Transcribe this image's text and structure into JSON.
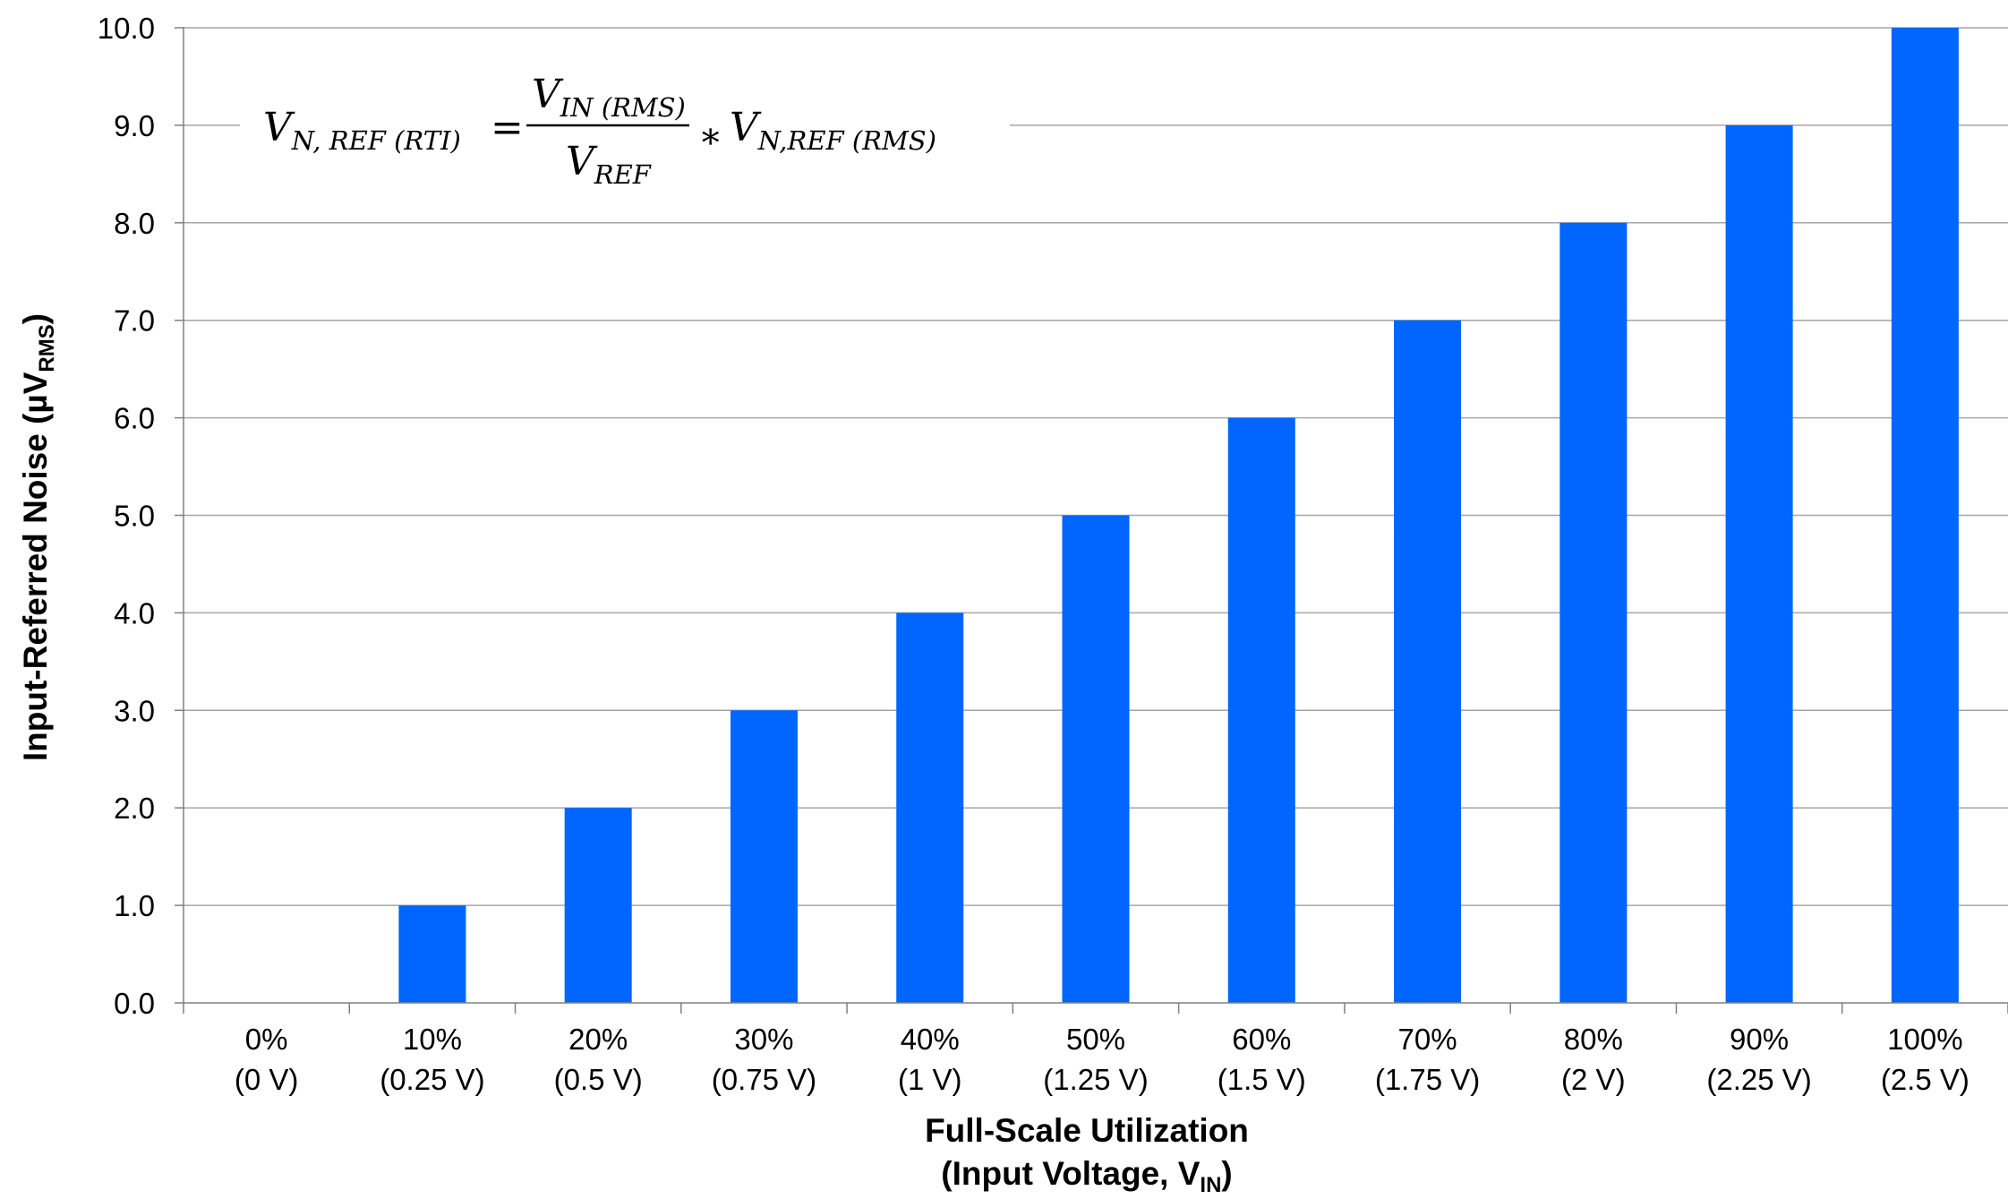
{
  "chart_data": {
    "type": "bar",
    "categories": [
      [
        "0%",
        "(0 V)"
      ],
      [
        "10%",
        "(0.25 V)"
      ],
      [
        "20%",
        "(0.5 V)"
      ],
      [
        "30%",
        "(0.75 V)"
      ],
      [
        "40%",
        "(1 V)"
      ],
      [
        "50%",
        "(1.25 V)"
      ],
      [
        "60%",
        "(1.5 V)"
      ],
      [
        "70%",
        "(1.75 V)"
      ],
      [
        "80%",
        "(2 V)"
      ],
      [
        "90%",
        "(2.25 V)"
      ],
      [
        "100%",
        "(2.5 V)"
      ]
    ],
    "values": [
      0,
      1,
      2,
      3,
      4,
      5,
      6,
      7,
      8,
      9,
      10
    ],
    "ylim": [
      0,
      10
    ],
    "yticks": [
      "0.0",
      "1.0",
      "2.0",
      "3.0",
      "4.0",
      "5.0",
      "6.0",
      "7.0",
      "8.0",
      "9.0",
      "10.0"
    ],
    "grid": true,
    "bar_color": "#0066ff",
    "xlabel": {
      "line1": "Full-Scale Utilization",
      "line2_main": "(Input Voltage, V",
      "line2_sub": "IN",
      "line2_end": ")"
    },
    "ylabel": {
      "main": "Input-Referred Noise (µV",
      "sub": "RMS",
      "end": ")"
    },
    "annotation": {
      "lhs": "V",
      "lhs_sub": "N, REF (RTI)",
      "equals": "=",
      "num": "V",
      "num_sub": "IN (RMS)",
      "den": "V",
      "den_sub": "REF",
      "times": "∗",
      "rhs": "V",
      "rhs_sub": "N,REF (RMS)"
    }
  }
}
